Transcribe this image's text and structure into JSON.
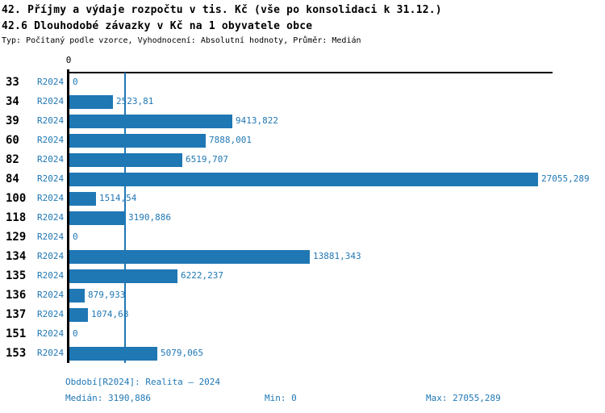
{
  "header": {
    "title": "42. Příjmy a výdaje rozpočtu v tis. Kč (vše po konsolidaci k 31.12.)",
    "subtitle": "42.6 Dlouhodobé závazky v Kč na 1 obyvatele obce",
    "meta": "Typ: Počítaný podle vzorce, Vyhodnocení: Absolutní hodnoty, Průměr: Medián"
  },
  "chart_data": {
    "type": "bar",
    "orientation": "horizontal",
    "title": "42.6 Dlouhodobé závazky v Kč na 1 obyvatele obce",
    "categories": [
      "33",
      "34",
      "39",
      "60",
      "82",
      "84",
      "100",
      "118",
      "129",
      "134",
      "135",
      "136",
      "137",
      "151",
      "153"
    ],
    "series": [
      {
        "name": "R2024",
        "values": [
          0,
          2523.81,
          9413.822,
          7888.001,
          6519.707,
          27055.289,
          1514.54,
          3190.886,
          0,
          13881.343,
          6222.237,
          879.933,
          1074.68,
          0,
          5079.065
        ]
      }
    ],
    "value_labels": [
      "0",
      "2523,81",
      "9413,822",
      "7888,001",
      "6519,707",
      "27055,289",
      "1514,54",
      "3190,886",
      "0",
      "13881,343",
      "6222,237",
      "879,933",
      "1074,68",
      "0",
      "5079,065"
    ],
    "xlim": [
      0,
      27055.289
    ],
    "x_axis_tick_labels": [
      "0"
    ],
    "axis_tick_zero": "0",
    "median_value": 3190.886,
    "grid": false,
    "legend_position": "none",
    "bar_color": "#1f77b4",
    "median_line_color": "#1f77b4"
  },
  "footer": {
    "period": "Období[R2024]: Realita – 2024",
    "median": "Medián: 3190,886",
    "min": "Min: 0",
    "max": "Max: 27055,289"
  },
  "colors": {
    "accent": "#1f77b4",
    "text": "#000000",
    "background": "#ffffff"
  }
}
